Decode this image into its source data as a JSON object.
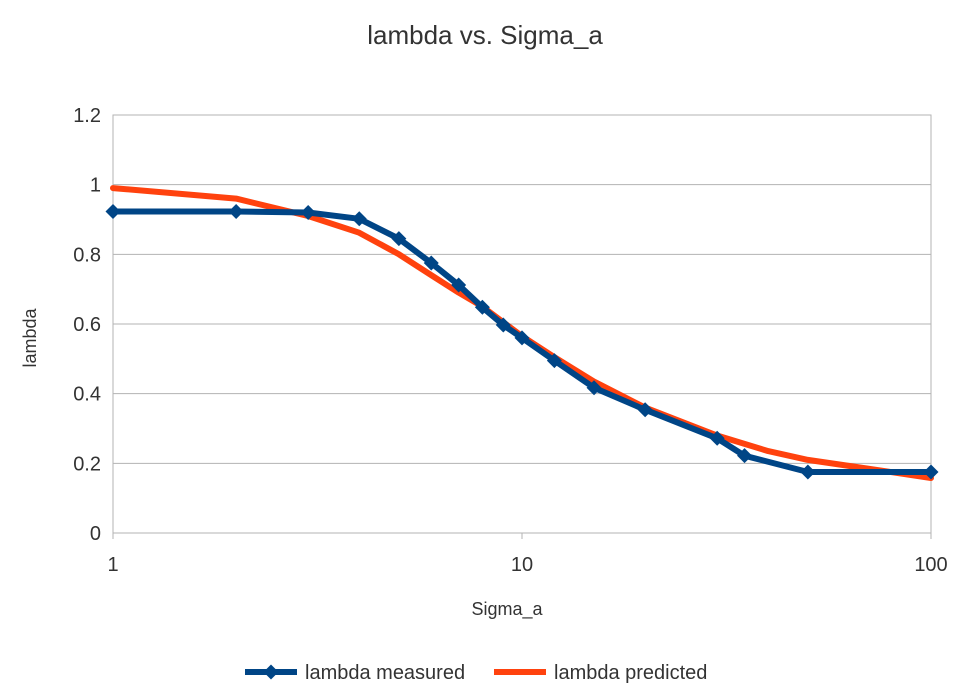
{
  "chart_data": {
    "type": "line",
    "title": "lambda vs. Sigma_a",
    "xlabel": "Sigma_a",
    "ylabel": "lambda",
    "x_scale": "log",
    "xlim": [
      1,
      100
    ],
    "ylim": [
      0,
      1.2
    ],
    "x_ticks": [
      "1",
      "10",
      "100"
    ],
    "y_ticks": [
      "0",
      "0.2",
      "0.4",
      "0.6",
      "0.8",
      "1",
      "1.2"
    ],
    "grid": "horizontal",
    "legend_position": "bottom",
    "series": [
      {
        "name": "lambda measured",
        "color": "#004586",
        "marker": "diamond",
        "x": [
          1,
          2,
          3,
          4,
          5,
          6,
          7,
          8,
          9,
          10,
          12,
          15,
          20,
          30,
          35,
          50,
          100
        ],
        "y": [
          0.923,
          0.923,
          0.92,
          0.902,
          0.845,
          0.775,
          0.712,
          0.648,
          0.597,
          0.56,
          0.495,
          0.417,
          0.354,
          0.272,
          0.222,
          0.175,
          0.175
        ]
      },
      {
        "name": "lambda predicted",
        "color": "#ff420e",
        "marker": "none",
        "x": [
          1,
          2,
          3,
          4,
          5,
          6,
          7,
          8,
          9,
          10,
          12,
          15,
          20,
          30,
          40,
          50,
          70,
          100
        ],
        "y": [
          0.99,
          0.96,
          0.91,
          0.862,
          0.8,
          0.74,
          0.69,
          0.65,
          0.605,
          0.565,
          0.505,
          0.435,
          0.36,
          0.28,
          0.235,
          0.21,
          0.185,
          0.158
        ]
      }
    ]
  }
}
